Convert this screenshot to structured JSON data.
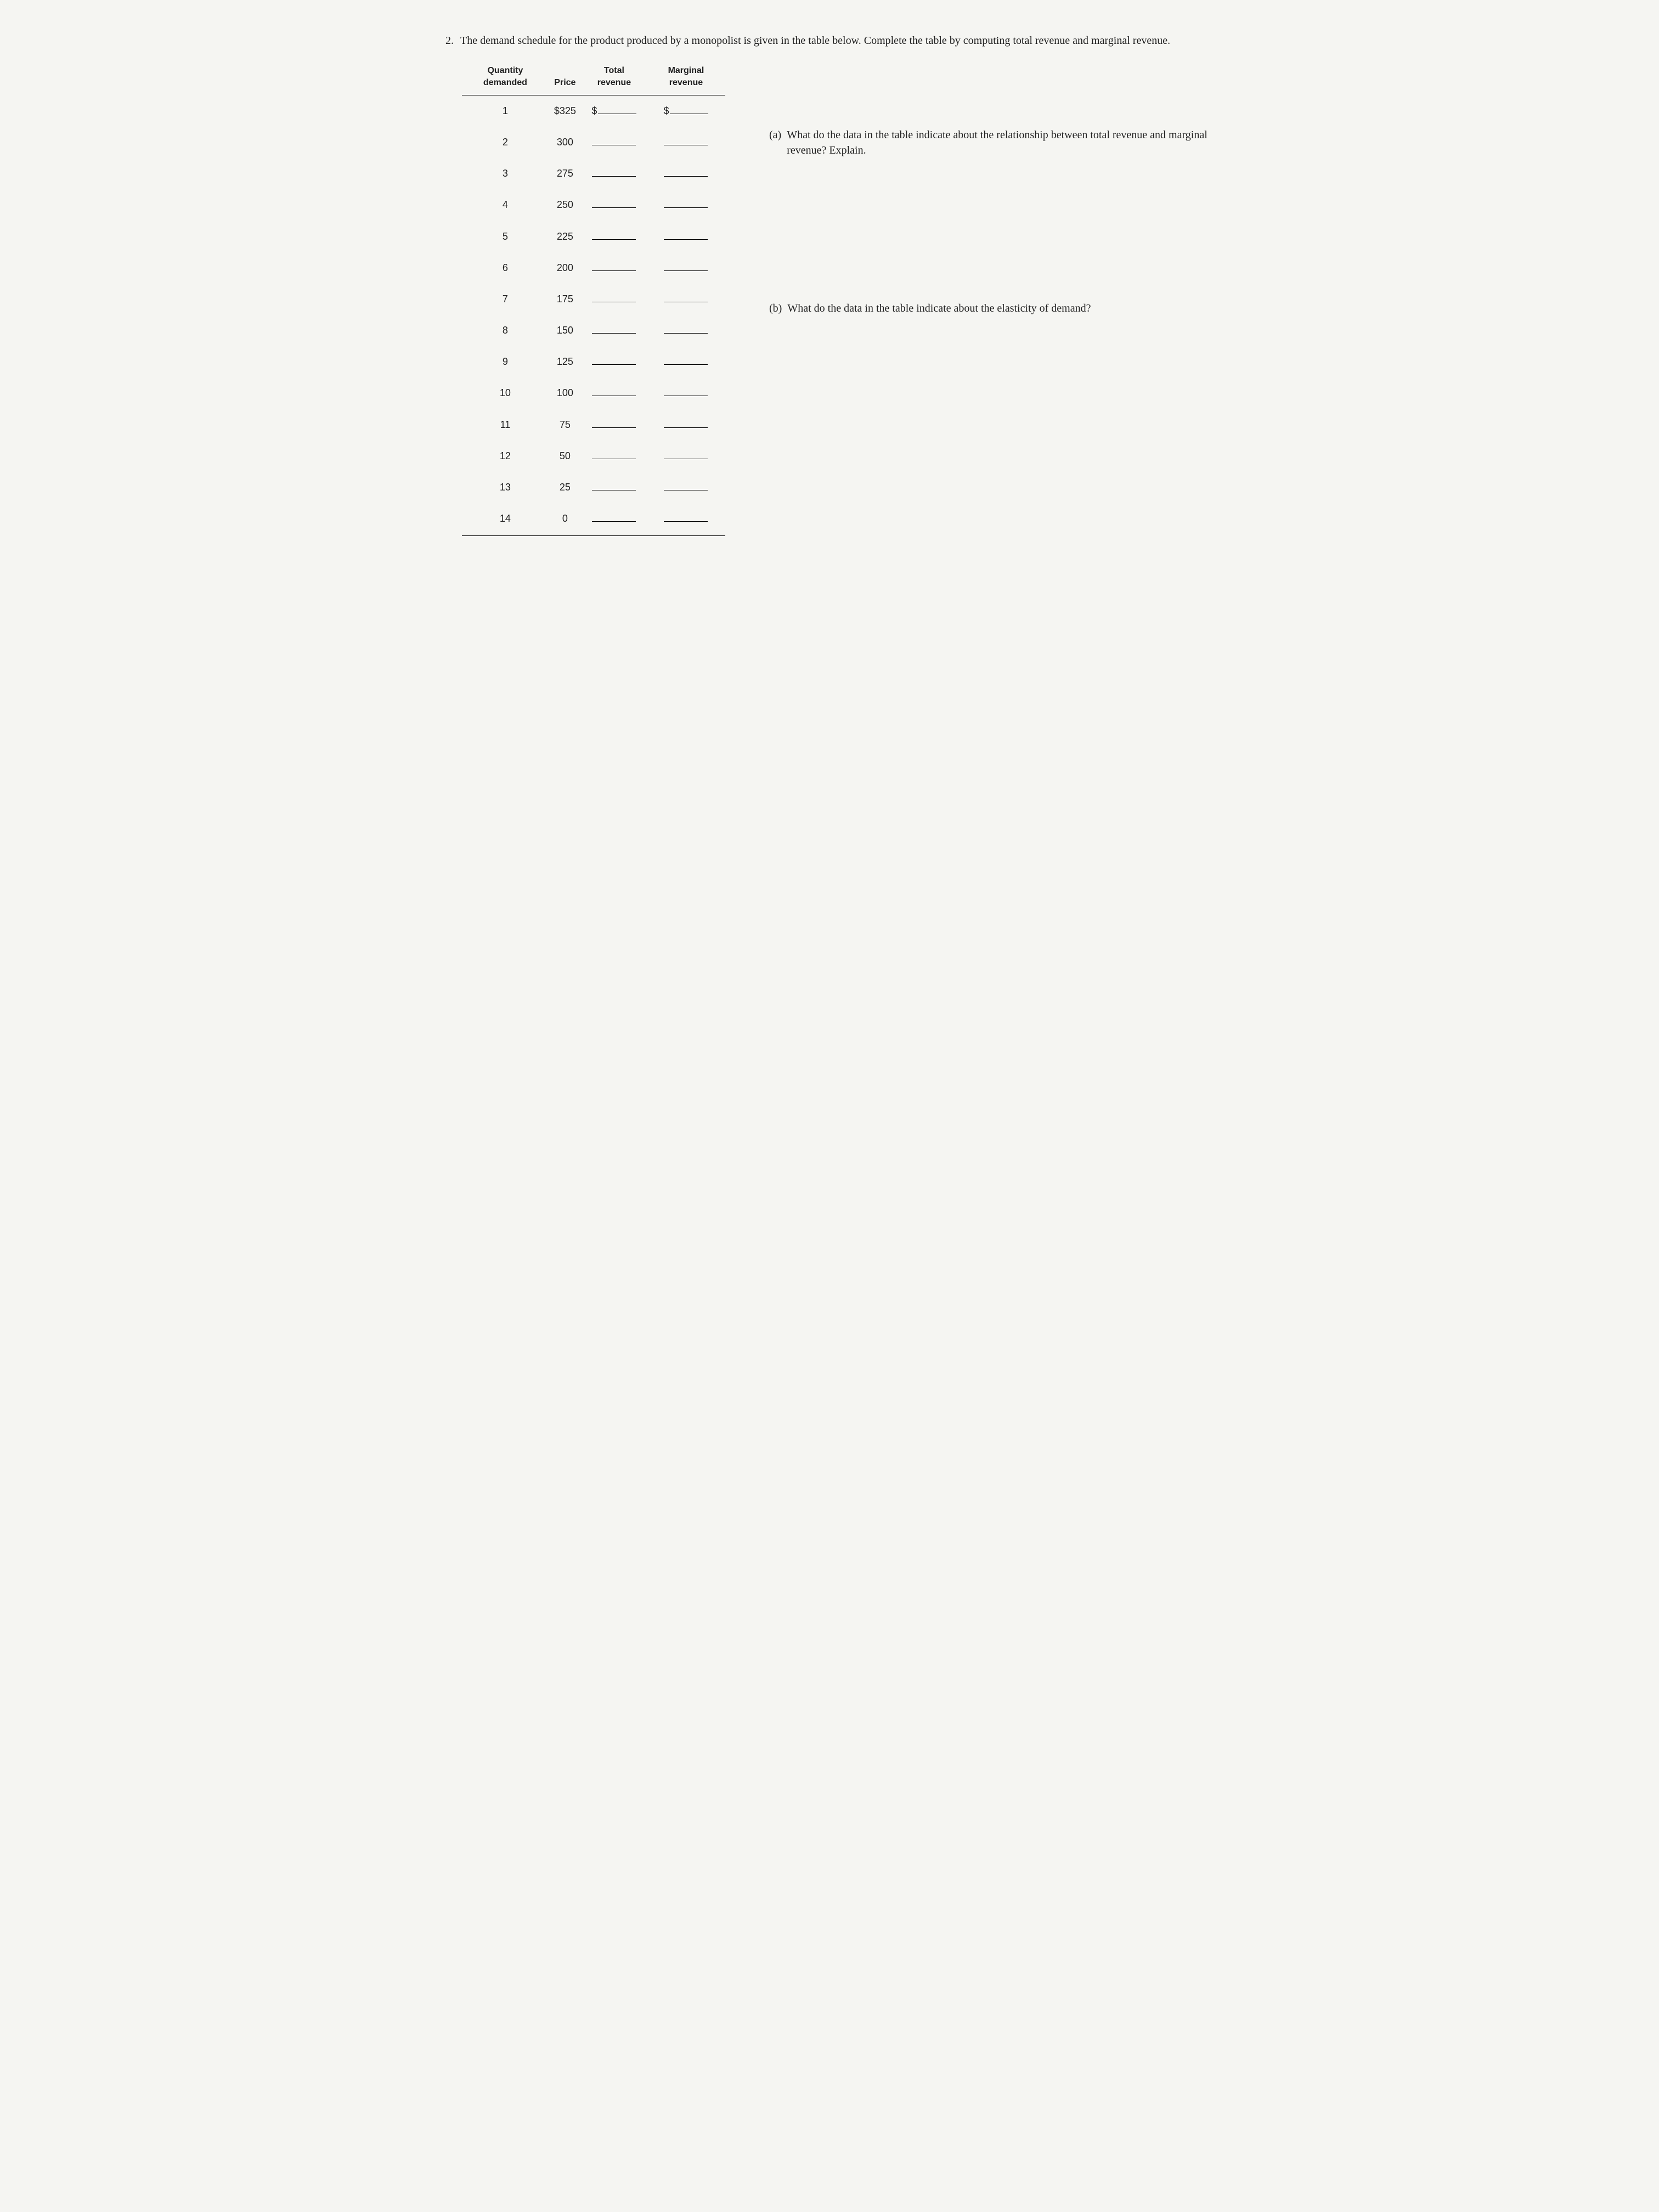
{
  "question_number": "2.",
  "prompt": "The demand schedule for the product produced by a monopolist is given in the table below. Complete the table by computing total revenue and marginal revenue.",
  "table": {
    "headers": {
      "qty": "Quantity demanded",
      "price": "Price",
      "tr": "Total revenue",
      "mr": "Marginal revenue"
    },
    "currency_prefix": "$",
    "rows": [
      {
        "qty": "1",
        "price": "$325",
        "tr_prefix": "$",
        "mr_prefix": "$"
      },
      {
        "qty": "2",
        "price": "300"
      },
      {
        "qty": "3",
        "price": "275"
      },
      {
        "qty": "4",
        "price": "250"
      },
      {
        "qty": "5",
        "price": "225"
      },
      {
        "qty": "6",
        "price": "200"
      },
      {
        "qty": "7",
        "price": "175"
      },
      {
        "qty": "8",
        "price": "150"
      },
      {
        "qty": "9",
        "price": "125"
      },
      {
        "qty": "10",
        "price": "100"
      },
      {
        "qty": "11",
        "price": "75"
      },
      {
        "qty": "12",
        "price": "50"
      },
      {
        "qty": "13",
        "price": "25"
      },
      {
        "qty": "14",
        "price": "0"
      }
    ]
  },
  "subquestions": {
    "a": {
      "label": "(a)",
      "text": "What do the data in the table indicate about the relationship between total revenue and marginal revenue? Explain."
    },
    "b": {
      "label": "(b)",
      "text": "What do the data in the table indicate about the elasticity of demand?"
    }
  }
}
